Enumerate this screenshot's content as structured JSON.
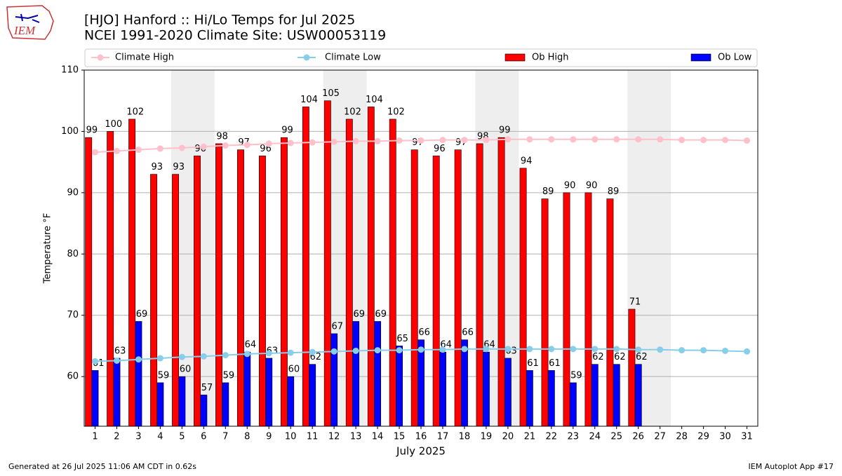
{
  "logo_text": "IEM",
  "footer_left": "Generated at 26 Jul 2025 11:06 AM CDT in 0.62s",
  "footer_right": "IEM Autoplot App #17",
  "chart_data": {
    "type": "bar",
    "title": "[HJO] Hanford :: Hi/Lo Temps for Jul 2025",
    "subtitle": "NCEI 1991-2020 Climate Site: USW00053119",
    "x_label": "July 2025",
    "y_label": "Temperature °F",
    "x": [
      1,
      2,
      3,
      4,
      5,
      6,
      7,
      8,
      9,
      10,
      11,
      12,
      13,
      14,
      15,
      16,
      17,
      18,
      19,
      20,
      21,
      22,
      23,
      24,
      25,
      26,
      27,
      28,
      29,
      30,
      31
    ],
    "xlim": [
      0.5,
      31.5
    ],
    "xticks": [
      1,
      2,
      3,
      4,
      5,
      6,
      7,
      8,
      9,
      10,
      11,
      12,
      13,
      14,
      15,
      16,
      17,
      18,
      19,
      20,
      21,
      22,
      23,
      24,
      25,
      26,
      27,
      28,
      29,
      30,
      31
    ],
    "ylim": [
      51.9,
      110
    ],
    "yticks": [
      60,
      70,
      80,
      90,
      100,
      110
    ],
    "grid": true,
    "legend": "top",
    "shaded_ranges": [
      [
        4.5,
        6.5
      ],
      [
        11.5,
        13.5
      ],
      [
        18.5,
        20.5
      ],
      [
        25.5,
        27.5
      ]
    ],
    "shade_color": "#eeeeee",
    "series": [
      {
        "name": "Climate High",
        "type": "line",
        "color": "#ffc0cb",
        "values": [
          96.6,
          96.8,
          97.0,
          97.2,
          97.3,
          97.5,
          97.7,
          97.8,
          98.0,
          98.1,
          98.2,
          98.3,
          98.4,
          98.4,
          98.5,
          98.5,
          98.6,
          98.6,
          98.6,
          98.7,
          98.7,
          98.7,
          98.7,
          98.7,
          98.7,
          98.7,
          98.7,
          98.6,
          98.6,
          98.6,
          98.5
        ]
      },
      {
        "name": "Climate Low",
        "type": "line",
        "color": "#87ceeb",
        "values": [
          62.5,
          62.6,
          62.8,
          63.0,
          63.2,
          63.3,
          63.5,
          63.7,
          63.8,
          63.9,
          64.0,
          64.1,
          64.2,
          64.3,
          64.3,
          64.4,
          64.4,
          64.5,
          64.5,
          64.5,
          64.5,
          64.5,
          64.5,
          64.5,
          64.5,
          64.4,
          64.4,
          64.3,
          64.3,
          64.2,
          64.1
        ]
      },
      {
        "name": "Ob High",
        "type": "bar",
        "color": "#ff0000",
        "values": [
          99,
          100,
          102,
          93,
          93,
          96,
          98,
          97,
          96,
          99,
          104,
          105,
          102,
          104,
          102,
          97,
          96,
          97,
          98,
          99,
          94,
          89,
          90,
          90,
          89,
          71,
          null,
          null,
          null,
          null,
          null
        ]
      },
      {
        "name": "Ob Low",
        "type": "bar",
        "color": "#0000ff",
        "values": [
          61,
          63,
          69,
          59,
          60,
          57,
          59,
          64,
          63,
          60,
          62,
          67,
          69,
          69,
          65,
          66,
          64,
          66,
          64,
          63,
          61,
          61,
          59,
          62,
          62,
          62,
          null,
          null,
          null,
          null,
          null
        ]
      }
    ]
  }
}
